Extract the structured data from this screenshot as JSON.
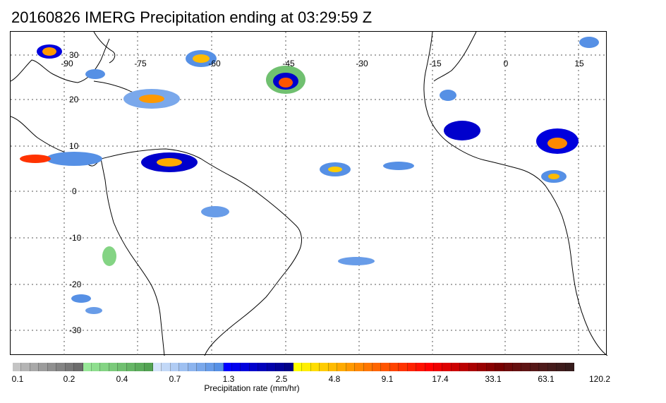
{
  "title": "20160826 IMERG Precipitation ending at 03:29:59 Z",
  "map": {
    "lon_labels": [
      "-90",
      "-75",
      "-60",
      "-45",
      "-30",
      "-15",
      "0",
      "15"
    ],
    "lat_labels": [
      "30",
      "20",
      "10",
      "0",
      "-10",
      "-20",
      "-30"
    ],
    "gridlines": "dotted"
  },
  "colorbar": {
    "label": "Precipitation rate (mm/hr)",
    "ticks": [
      "0.1",
      "0.2",
      "0.4",
      "0.7",
      "1.3",
      "2.5",
      "4.8",
      "9.1",
      "17.4",
      "33.1",
      "63.1",
      "120.2"
    ],
    "colors": [
      "#c4c4c4",
      "#b4b4b4",
      "#a8a8a8",
      "#9c9c9c",
      "#909090",
      "#848484",
      "#787878",
      "#6c6c6c",
      "#98e898",
      "#8ede8e",
      "#84d484",
      "#7aca7a",
      "#70c070",
      "#66b666",
      "#5cac5c",
      "#52a252",
      "#d4e4fa",
      "#c2d8f7",
      "#b0ccf4",
      "#9ec0f1",
      "#8cb4ee",
      "#7aa8eb",
      "#689ce8",
      "#5690e5",
      "#0000ff",
      "#0000ee",
      "#0000dd",
      "#0000cc",
      "#0000bb",
      "#0000aa",
      "#000099",
      "#000088",
      "#ffff00",
      "#ffee00",
      "#ffdd00",
      "#ffcc00",
      "#ffbb00",
      "#ffaa00",
      "#ff9900",
      "#ff8800",
      "#ff7700",
      "#ff6600",
      "#ff5500",
      "#ff4400",
      "#ff3300",
      "#ff2200",
      "#ff1100",
      "#ff0000",
      "#ee0000",
      "#dd0000",
      "#cc0000",
      "#bb0000",
      "#aa0000",
      "#990000",
      "#880000",
      "#770000",
      "#6e0a0a",
      "#661010",
      "#5e1414",
      "#561818",
      "#4e1a1a",
      "#461c1c",
      "#3e1c1c",
      "#361c1c"
    ]
  }
}
